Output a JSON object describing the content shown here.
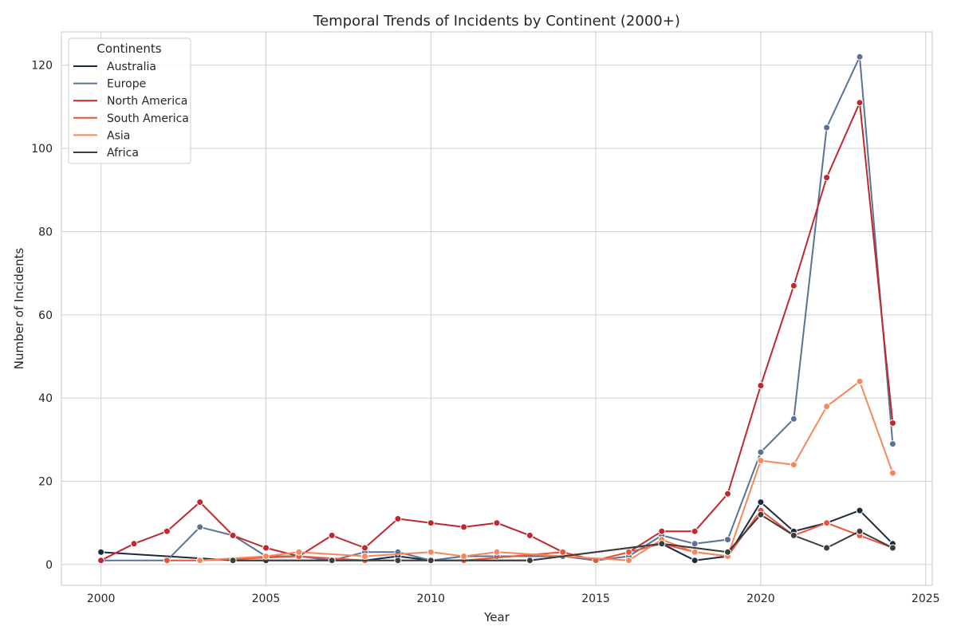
{
  "chart_data": {
    "type": "line",
    "title": "Temporal Trends of Incidents by Continent (2000+)",
    "xlabel": "Year",
    "ylabel": "Number of Incidents",
    "xlim": [
      1998.8,
      2025.2
    ],
    "ylim": [
      -5,
      128
    ],
    "xticks": [
      2000,
      2005,
      2010,
      2015,
      2020,
      2025
    ],
    "yticks": [
      0,
      20,
      40,
      60,
      80,
      100,
      120
    ],
    "grid": true,
    "legend": {
      "title": "Continents",
      "position": "top-left"
    },
    "series": [
      {
        "name": "Australia",
        "color": "#1b2a41",
        "points": [
          [
            2000,
            3
          ],
          [
            2004,
            1
          ],
          [
            2005,
            1
          ],
          [
            2007,
            1
          ],
          [
            2008,
            1
          ],
          [
            2009,
            2
          ],
          [
            2010,
            1
          ],
          [
            2011,
            1
          ],
          [
            2013,
            1
          ],
          [
            2017,
            5
          ],
          [
            2018,
            1
          ],
          [
            2019,
            2
          ],
          [
            2020,
            15
          ],
          [
            2021,
            8
          ],
          [
            2022,
            10
          ],
          [
            2023,
            13
          ],
          [
            2024,
            5
          ]
        ]
      },
      {
        "name": "Europe",
        "color": "#5a7394",
        "points": [
          [
            2000,
            1
          ],
          [
            2002,
            1
          ],
          [
            2003,
            9
          ],
          [
            2004,
            7
          ],
          [
            2005,
            2
          ],
          [
            2006,
            2
          ],
          [
            2007,
            1
          ],
          [
            2008,
            3
          ],
          [
            2009,
            3
          ],
          [
            2010,
            1
          ],
          [
            2011,
            2
          ],
          [
            2012,
            2
          ],
          [
            2014,
            2
          ],
          [
            2015,
            1
          ],
          [
            2016,
            2
          ],
          [
            2017,
            7
          ],
          [
            2018,
            5
          ],
          [
            2019,
            6
          ],
          [
            2020,
            27
          ],
          [
            2021,
            35
          ],
          [
            2022,
            105
          ],
          [
            2023,
            122
          ],
          [
            2024,
            29
          ]
        ]
      },
      {
        "name": "North America",
        "color": "#c0282d",
        "points": [
          [
            2000,
            1
          ],
          [
            2001,
            5
          ],
          [
            2002,
            8
          ],
          [
            2003,
            15
          ],
          [
            2004,
            7
          ],
          [
            2005,
            4
          ],
          [
            2006,
            2
          ],
          [
            2007,
            7
          ],
          [
            2008,
            4
          ],
          [
            2009,
            11
          ],
          [
            2010,
            10
          ],
          [
            2011,
            9
          ],
          [
            2012,
            10
          ],
          [
            2013,
            7
          ],
          [
            2014,
            3
          ],
          [
            2015,
            1
          ],
          [
            2016,
            3
          ],
          [
            2017,
            8
          ],
          [
            2018,
            8
          ],
          [
            2019,
            17
          ],
          [
            2020,
            43
          ],
          [
            2021,
            67
          ],
          [
            2022,
            93
          ],
          [
            2023,
            111
          ],
          [
            2024,
            34
          ]
        ]
      },
      {
        "name": "South America",
        "color": "#e8553a",
        "points": [
          [
            2002,
            1
          ],
          [
            2003,
            1
          ],
          [
            2006,
            2
          ],
          [
            2008,
            1
          ],
          [
            2011,
            1
          ],
          [
            2014,
            3
          ],
          [
            2015,
            1
          ],
          [
            2016,
            3
          ],
          [
            2017,
            5
          ],
          [
            2018,
            3
          ],
          [
            2019,
            2
          ],
          [
            2020,
            13
          ],
          [
            2021,
            7
          ],
          [
            2022,
            10
          ],
          [
            2023,
            7
          ],
          [
            2024,
            4
          ]
        ]
      },
      {
        "name": "Asia",
        "color": "#f6875a",
        "points": [
          [
            2003,
            1
          ],
          [
            2005,
            2
          ],
          [
            2006,
            3
          ],
          [
            2008,
            2
          ],
          [
            2010,
            3
          ],
          [
            2011,
            2
          ],
          [
            2012,
            3
          ],
          [
            2016,
            1
          ],
          [
            2017,
            6
          ],
          [
            2018,
            3
          ],
          [
            2019,
            2
          ],
          [
            2020,
            25
          ],
          [
            2021,
            24
          ],
          [
            2022,
            38
          ],
          [
            2023,
            44
          ],
          [
            2024,
            22
          ]
        ]
      },
      {
        "name": "Africa",
        "color": "#3d3d3d",
        "points": [
          [
            2004,
            1
          ],
          [
            2007,
            1
          ],
          [
            2009,
            1
          ],
          [
            2010,
            1
          ],
          [
            2013,
            1
          ],
          [
            2017,
            5
          ],
          [
            2019,
            3
          ],
          [
            2020,
            12
          ],
          [
            2021,
            7
          ],
          [
            2022,
            4
          ],
          [
            2023,
            8
          ],
          [
            2024,
            4
          ]
        ]
      }
    ]
  }
}
